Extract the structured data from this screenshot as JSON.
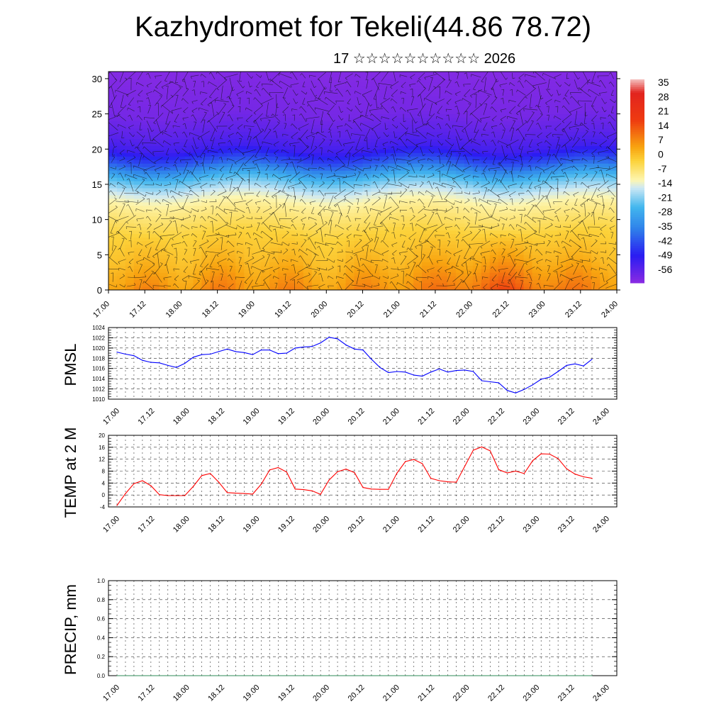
{
  "header": {
    "title": "Kazhydromet for Tekeli(44.86 78.72)",
    "subtitle": "17 ☆☆☆☆☆☆☆☆☆☆ 2026"
  },
  "time_ticks": [
    "17.00",
    "17.12",
    "18.00",
    "18.12",
    "19.00",
    "19.12",
    "20.00",
    "20.12",
    "21.00",
    "21.12",
    "22.00",
    "22.12",
    "23.00",
    "23.12",
    "24.00"
  ],
  "chart_data": [
    {
      "type": "heatmap",
      "name": "vertical-cross-section",
      "x_ticks": [
        "17.00",
        "17.12",
        "18.00",
        "18.12",
        "19.00",
        "19.12",
        "20.00",
        "20.12",
        "21.00",
        "21.12",
        "22.00",
        "22.12",
        "23.00",
        "23.12",
        "24.00"
      ],
      "y_ticks": [
        "0",
        "5",
        "10",
        "15",
        "20",
        "25",
        "30"
      ],
      "ylim": [
        0,
        31
      ],
      "colorbar": {
        "labels": [
          "35",
          "28",
          "21",
          "14",
          "7",
          "0",
          "-7",
          "-14",
          "-21",
          "-28",
          "-35",
          "-42",
          "-49",
          "-56"
        ],
        "range": [
          -63,
          42
        ],
        "stops": [
          {
            "value": 42,
            "color": "#f4c0c0"
          },
          {
            "value": 35,
            "color": "#e2241e"
          },
          {
            "value": 21,
            "color": "#ee3a10"
          },
          {
            "value": 7,
            "color": "#f8a410"
          },
          {
            "value": 0,
            "color": "#fcd23a"
          },
          {
            "value": -10,
            "color": "#fdf6b0"
          },
          {
            "value": -14,
            "color": "#cde8f4"
          },
          {
            "value": -24,
            "color": "#42b6ee"
          },
          {
            "value": -35,
            "color": "#2f82ea"
          },
          {
            "value": -49,
            "color": "#2a1cf2"
          },
          {
            "value": -63,
            "color": "#8a2be2"
          }
        ]
      },
      "temperature_profile": [
        {
          "height": 0,
          "value": 10
        },
        {
          "height": 4,
          "value": 4
        },
        {
          "height": 8,
          "value": 0
        },
        {
          "height": 12,
          "value": -8
        },
        {
          "height": 14,
          "value": -14
        },
        {
          "height": 16,
          "value": -24
        },
        {
          "height": 18,
          "value": -40
        },
        {
          "height": 20,
          "value": -52
        },
        {
          "height": 22,
          "value": -56
        },
        {
          "height": 25,
          "value": -60
        },
        {
          "height": 31,
          "value": -62
        }
      ],
      "wind_vectors": true
    },
    {
      "type": "line",
      "name": "PMSL",
      "ylabel": "PMSL",
      "ylim": [
        1010,
        1024
      ],
      "y_ticks": [
        "1010",
        "1012",
        "1014",
        "1016",
        "1018",
        "1020",
        "1022",
        "1024"
      ],
      "x_ticks": [
        "17.00",
        "17.12",
        "18.00",
        "18.12",
        "19.00",
        "19.12",
        "20.00",
        "20.12",
        "21.00",
        "21.12",
        "22.00",
        "22.12",
        "23.00",
        "23.12",
        "24.00"
      ],
      "color": "#0000ff",
      "values": [
        1019.2,
        1018.8,
        1018.5,
        1017.6,
        1017.2,
        1017.1,
        1016.6,
        1016.2,
        1017.0,
        1018.2,
        1018.7,
        1018.8,
        1019.3,
        1019.8,
        1019.3,
        1019.1,
        1018.7,
        1019.6,
        1019.6,
        1018.9,
        1019.0,
        1020.0,
        1020.2,
        1020.3,
        1021.0,
        1022.1,
        1021.8,
        1020.6,
        1019.8,
        1019.6,
        1017.8,
        1016.2,
        1015.2,
        1015.4,
        1015.3,
        1014.7,
        1014.5,
        1015.3,
        1015.9,
        1015.3,
        1015.6,
        1015.7,
        1015.4,
        1013.6,
        1013.4,
        1013.2,
        1011.7,
        1011.2,
        1011.9,
        1012.8,
        1013.9,
        1014.3,
        1015.4,
        1016.6,
        1016.9,
        1016.5,
        1017.8
      ]
    },
    {
      "type": "line",
      "name": "TEMP at 2 M",
      "ylabel": "TEMP at 2 M",
      "ylim": [
        -4,
        20
      ],
      "y_ticks": [
        "-4",
        "0",
        "4",
        "8",
        "12",
        "16",
        "20"
      ],
      "x_ticks": [
        "17.00",
        "17.12",
        "18.00",
        "18.12",
        "19.00",
        "19.12",
        "20.00",
        "20.12",
        "21.00",
        "21.12",
        "22.00",
        "22.12",
        "23.00",
        "23.12",
        "24.00"
      ],
      "color": "#ff0000",
      "values": [
        -3.5,
        0.5,
        3.8,
        4.8,
        3.1,
        0.1,
        -0.2,
        -0.2,
        -0.2,
        2.9,
        6.5,
        7.2,
        4.3,
        0.8,
        0.6,
        0.5,
        0.3,
        3.6,
        8.4,
        9.2,
        7.7,
        2.0,
        1.8,
        1.4,
        0.2,
        5.0,
        7.8,
        8.7,
        7.5,
        2.5,
        2.0,
        1.9,
        1.9,
        7.3,
        11.2,
        11.9,
        10.5,
        5.6,
        4.8,
        4.4,
        4.3,
        9.6,
        15.0,
        16.1,
        14.8,
        8.5,
        7.4,
        8.0,
        7.2,
        11.5,
        13.8,
        13.7,
        12.2,
        8.8,
        7.0,
        6.1,
        5.6
      ]
    },
    {
      "type": "line",
      "name": "PRECIP, mm",
      "ylabel": "PRECIP, mm",
      "ylim": [
        0,
        1
      ],
      "y_ticks": [
        "0.0",
        "0.2",
        "0.4",
        "0.6",
        "0.8",
        "1.0"
      ],
      "x_ticks": [
        "17.00",
        "17.12",
        "18.00",
        "18.12",
        "19.00",
        "19.12",
        "20.00",
        "20.12",
        "21.00",
        "21.12",
        "22.00",
        "22.12",
        "23.00",
        "23.12",
        "24.00"
      ],
      "color": "#2e8b57",
      "values": [
        0,
        0,
        0,
        0,
        0,
        0,
        0,
        0,
        0,
        0,
        0,
        0,
        0,
        0,
        0,
        0,
        0,
        0,
        0,
        0,
        0,
        0,
        0,
        0,
        0,
        0,
        0,
        0,
        0,
        0,
        0,
        0,
        0,
        0,
        0,
        0,
        0,
        0,
        0,
        0,
        0,
        0,
        0,
        0,
        0,
        0,
        0,
        0,
        0,
        0,
        0,
        0,
        0,
        0,
        0,
        0,
        0
      ]
    }
  ]
}
